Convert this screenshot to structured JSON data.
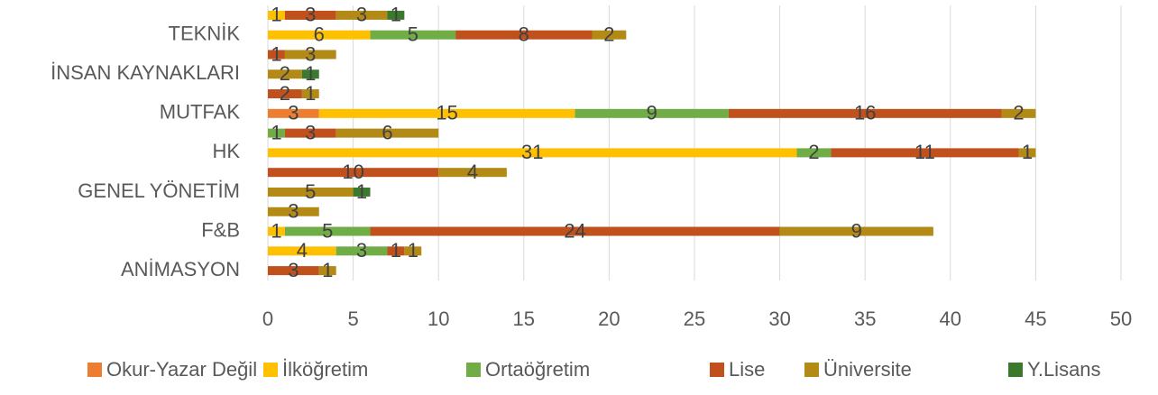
{
  "chart_data": {
    "type": "stacked-bar-horizontal",
    "categories": [
      "ANİMASYON",
      null,
      "F&B",
      null,
      "GENEL YÖNETİM",
      null,
      "HK",
      null,
      "MUTFAK",
      null,
      "İNSAN KAYNAKLARI",
      null,
      "TEKNİK",
      null
    ],
    "series": [
      {
        "name": "Okur-Yazar Değil",
        "color": "#ED7D31",
        "values": [
          null,
          null,
          null,
          null,
          null,
          null,
          null,
          null,
          3,
          null,
          null,
          null,
          null,
          null
        ]
      },
      {
        "name": "İlköğretim",
        "color": "#FFC000",
        "values": [
          null,
          4,
          1,
          null,
          null,
          null,
          31,
          null,
          15,
          null,
          null,
          null,
          6,
          1
        ]
      },
      {
        "name": "Ortaöğretim",
        "color": "#70AD47",
        "values": [
          null,
          3,
          5,
          null,
          null,
          null,
          2,
          1,
          9,
          null,
          null,
          null,
          5,
          null
        ]
      },
      {
        "name": "Lise",
        "color": "#C0501C",
        "values": [
          3,
          1,
          24,
          null,
          null,
          10,
          11,
          3,
          16,
          2,
          null,
          1,
          8,
          3
        ]
      },
      {
        "name": "Üniversite",
        "color": "#B38A16",
        "values": [
          1,
          1,
          9,
          3,
          5,
          4,
          1,
          6,
          2,
          1,
          2,
          3,
          2,
          3
        ]
      },
      {
        "name": "Y.Lisans",
        "color": "#3B7A2E",
        "values": [
          null,
          null,
          null,
          null,
          1,
          null,
          null,
          null,
          null,
          null,
          1,
          null,
          null,
          1
        ]
      }
    ],
    "xlim": [
      0,
      50
    ],
    "xticks": [
      0,
      5,
      10,
      15,
      20,
      25,
      30,
      35,
      40,
      45,
      50
    ],
    "grid": true,
    "legend": "bottom"
  }
}
